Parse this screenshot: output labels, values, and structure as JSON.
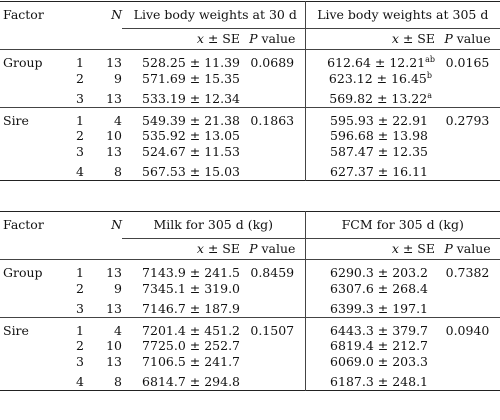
{
  "table1": {
    "headers": {
      "factor": "Factor",
      "n": "N",
      "group1": "Live body weights at 30 d",
      "group2": "Live body weights at 305 d",
      "mean_se": "x ± SE",
      "pvalue": "P value"
    },
    "sections": [
      {
        "name": "Group",
        "rows": [
          {
            "level": "1",
            "n": "13",
            "v1": "528.25 ± 11.39",
            "p1": "0.0689",
            "v2": "612.64 ± 12.21",
            "sup2": "ab",
            "p2": "0.0165"
          },
          {
            "level": "2",
            "n": "9",
            "v1": "571.69 ± 15.35",
            "p1": "",
            "v2": "623.12 ± 16.45",
            "sup2": "b",
            "p2": ""
          },
          {
            "level": "3",
            "n": "13",
            "v1": "533.19 ± 12.34",
            "p1": "",
            "v2": "569.82 ± 13.22",
            "sup2": "a",
            "p2": ""
          }
        ]
      },
      {
        "name": "Sire",
        "rows": [
          {
            "level": "1",
            "n": "4",
            "v1": "549.39 ± 21.38",
            "p1": "0.1863",
            "v2": "595.93 ± 22.91",
            "sup2": "",
            "p2": "0.2793"
          },
          {
            "level": "2",
            "n": "10",
            "v1": "535.92 ± 13.05",
            "p1": "",
            "v2": "596.68 ± 13.98",
            "sup2": "",
            "p2": ""
          },
          {
            "level": "3",
            "n": "13",
            "v1": "524.67 ± 11.53",
            "p1": "",
            "v2": "587.47 ± 12.35",
            "sup2": "",
            "p2": ""
          },
          {
            "level": "4",
            "n": "8",
            "v1": "567.53 ± 15.03",
            "p1": "",
            "v2": "627.37 ± 16.11",
            "sup2": "",
            "p2": ""
          }
        ]
      }
    ]
  },
  "table2": {
    "headers": {
      "factor": "Factor",
      "n": "N",
      "group1": "Milk for 305 d (kg)",
      "group2": "FCM for 305 d (kg)",
      "mean_se": "x ± SE",
      "pvalue": "P value"
    },
    "sections": [
      {
        "name": "Group",
        "rows": [
          {
            "level": "1",
            "n": "13",
            "v1": "7143.9 ± 241.5",
            "p1": "0.8459",
            "v2": "6290.3 ± 203.2",
            "sup2": "",
            "p2": "0.7382"
          },
          {
            "level": "2",
            "n": "9",
            "v1": "7345.1 ± 319.0",
            "p1": "",
            "v2": "6307.6 ± 268.4",
            "sup2": "",
            "p2": ""
          },
          {
            "level": "3",
            "n": "13",
            "v1": "7146.7 ± 187.9",
            "p1": "",
            "v2": "6399.3 ± 197.1",
            "sup2": "",
            "p2": ""
          }
        ]
      },
      {
        "name": "Sire",
        "rows": [
          {
            "level": "1",
            "n": "4",
            "v1": "7201.4 ± 451.2",
            "p1": "0.1507",
            "v2": "6443.3 ± 379.7",
            "sup2": "",
            "p2": "0.0940"
          },
          {
            "level": "2",
            "n": "10",
            "v1": "7725.0 ± 252.7",
            "p1": "",
            "v2": "6819.4 ± 212.7",
            "sup2": "",
            "p2": ""
          },
          {
            "level": "3",
            "n": "13",
            "v1": "7106.5 ± 241.7",
            "p1": "",
            "v2": "6069.0 ± 203.3",
            "sup2": "",
            "p2": ""
          },
          {
            "level": "4",
            "n": "8",
            "v1": "6814.7 ± 294.8",
            "p1": "",
            "v2": "6187.3 ± 248.1",
            "sup2": "",
            "p2": ""
          }
        ]
      }
    ]
  }
}
